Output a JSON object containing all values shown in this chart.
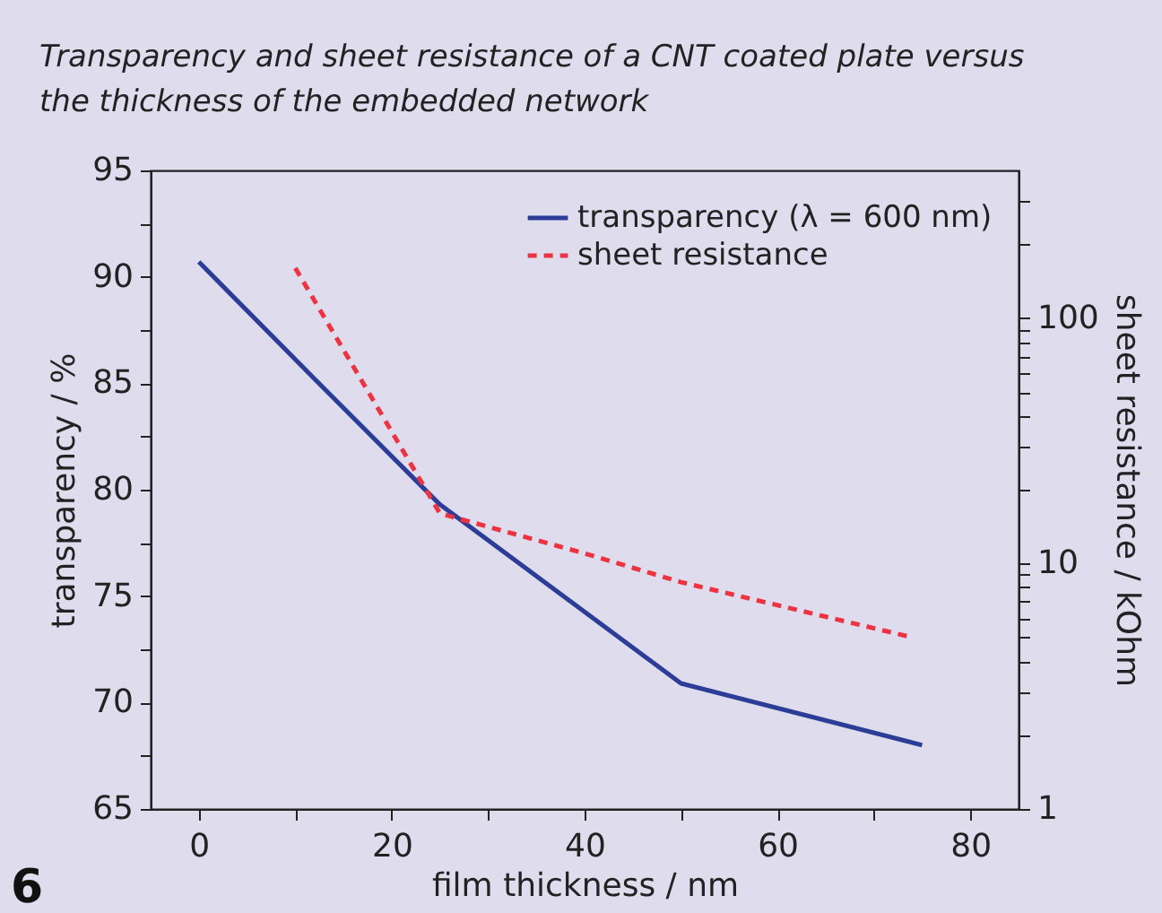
{
  "chart_data": {
    "type": "line",
    "title": "Transparency and sheet resistance of a CNT coated plate versus the thickness of the embedded network",
    "xlabel": "film thickness / nm",
    "ylabel": "transparency / %",
    "y2label": "sheet resistance / kOhm",
    "series": [
      {
        "name": "transparency (λ = 600 nm)",
        "color": "#2b3d97",
        "line_style": "solid",
        "x": [
          0,
          12,
          25,
          50,
          75
        ],
        "values": [
          90.7,
          85.2,
          79.3,
          70.9,
          68.0
        ]
      },
      {
        "name": "sheet resistance",
        "color": "#ee3340",
        "line_style": "dashed",
        "axis": "y2",
        "x": [
          10,
          25,
          40,
          50,
          74
        ],
        "values": [
          160,
          16,
          11,
          8.4,
          5
        ]
      }
    ],
    "xlim": [
      -5,
      85
    ],
    "xticks": [
      0,
      {
        "value": 10,
        "label": null
      },
      20,
      {
        "value": 30,
        "label": null
      },
      40,
      {
        "value": 50,
        "label": null
      },
      60,
      {
        "value": 70,
        "label": null
      },
      80
    ],
    "ylim": [
      65,
      95
    ],
    "yticks": [
      65,
      {
        "value": 67.5,
        "label": null
      },
      70,
      {
        "value": 72.5,
        "label": null
      },
      75,
      {
        "value": 77.5,
        "label": null
      },
      80,
      {
        "value": 82.5,
        "label": null
      },
      85,
      {
        "value": 87.5,
        "label": null
      },
      90,
      {
        "value": 92.5,
        "label": null
      },
      95
    ],
    "y2lim": [
      1,
      400
    ],
    "y2ticks": [
      1,
      {
        "value": 2,
        "label": null
      },
      {
        "value": 3,
        "label": null
      },
      {
        "value": 4,
        "label": null
      },
      {
        "value": 5,
        "label": null
      },
      {
        "value": 6,
        "label": null
      },
      {
        "value": 7,
        "label": null
      },
      {
        "value": 8,
        "label": null
      },
      {
        "value": 9,
        "label": null
      },
      10,
      {
        "value": 20,
        "label": null
      },
      {
        "value": 30,
        "label": null
      },
      {
        "value": 40,
        "label": null
      },
      {
        "value": 50,
        "label": null
      },
      {
        "value": 60,
        "label": null
      },
      {
        "value": 70,
        "label": null
      },
      {
        "value": 80,
        "label": null
      },
      {
        "value": 90,
        "label": null
      },
      100,
      {
        "value": 200,
        "label": null
      },
      {
        "value": 300,
        "label": null
      }
    ],
    "log": "y2",
    "grid": false,
    "legend": "top right",
    "annotations": [
      "6"
    ]
  }
}
